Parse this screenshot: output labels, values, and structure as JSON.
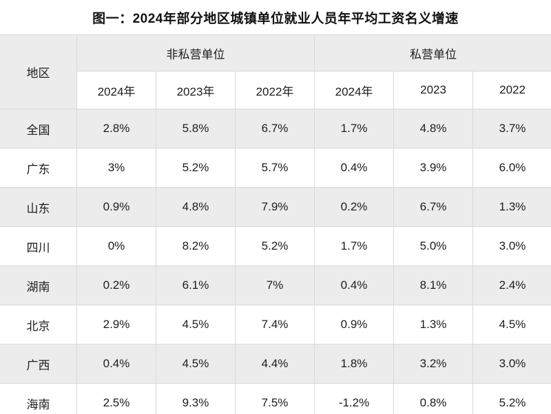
{
  "title": "图一：2024年部分地区城镇单位就业人员年平均工资名义增速",
  "colors": {
    "row_shade": "#ececec",
    "border": "#d9d9d9",
    "text": "#1c1c1c",
    "background": "#ffffff"
  },
  "chart_data": {
    "type": "table",
    "title": "图一：2024年部分地区城镇单位就业人员年平均工资名义增速",
    "corner_header": "地区",
    "group_headers": [
      "非私营单位",
      "私营单位"
    ],
    "year_headers": [
      "2024年",
      "2023年",
      "2022年",
      "2024年",
      "2023",
      "2022"
    ],
    "rows": [
      {
        "region": "全国",
        "values": [
          "2.8%",
          "5.8%",
          "6.7%",
          "1.7%",
          "4.8%",
          "3.7%"
        ]
      },
      {
        "region": "广东",
        "values": [
          "3%",
          "5.2%",
          "5.7%",
          "0.4%",
          "3.9%",
          "6.0%"
        ]
      },
      {
        "region": "山东",
        "values": [
          "0.9%",
          "4.8%",
          "7.9%",
          "0.2%",
          "6.7%",
          "1.3%"
        ]
      },
      {
        "region": "四川",
        "values": [
          "0%",
          "8.2%",
          "5.2%",
          "1.7%",
          "5.0%",
          "3.0%"
        ]
      },
      {
        "region": "湖南",
        "values": [
          "0.2%",
          "6.1%",
          "7%",
          "0.4%",
          "8.1%",
          "2.4%"
        ]
      },
      {
        "region": "北京",
        "values": [
          "2.9%",
          "4.5%",
          "7.4%",
          "0.9%",
          "1.3%",
          "4.5%"
        ]
      },
      {
        "region": "广西",
        "values": [
          "0.4%",
          "4.5%",
          "4.4%",
          "1.8%",
          "3.2%",
          "3.0%"
        ]
      },
      {
        "region": "海南",
        "values": [
          "2.5%",
          "9.3%",
          "7.5%",
          "-1.2%",
          "0.8%",
          "5.2%"
        ]
      }
    ]
  }
}
